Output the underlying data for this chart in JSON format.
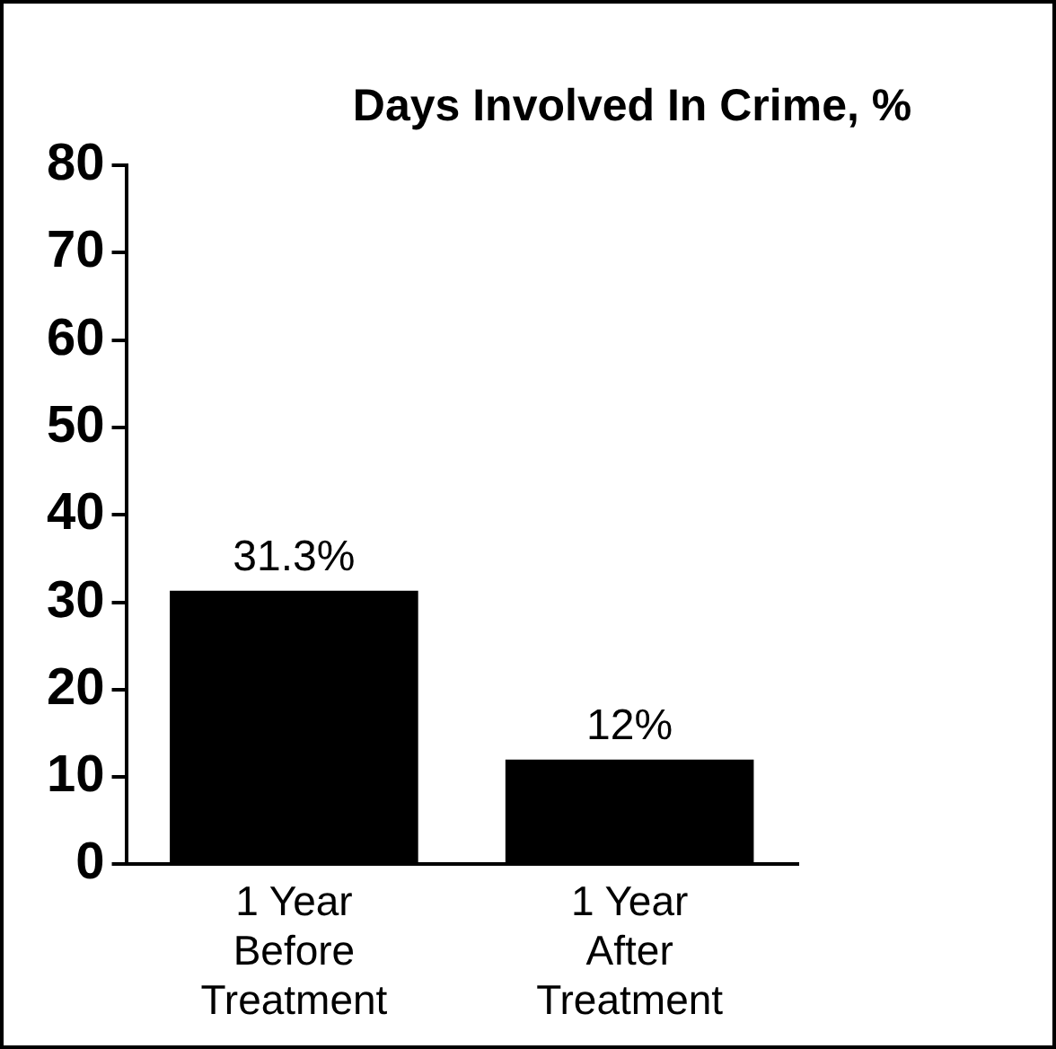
{
  "chart_data": {
    "type": "bar",
    "title": "Days Involved In Crime, %",
    "categories": [
      "1 Year\nBefore\nTreatment",
      "1 Year\nAfter\nTreatment"
    ],
    "values": [
      31.3,
      12
    ],
    "value_labels": [
      "31.3%",
      "12%"
    ],
    "color": "#000000",
    "ylim": [
      0,
      80
    ],
    "yticks": [
      0,
      10,
      20,
      30,
      40,
      50,
      60,
      70,
      80
    ],
    "grid": false,
    "legend": false
  }
}
